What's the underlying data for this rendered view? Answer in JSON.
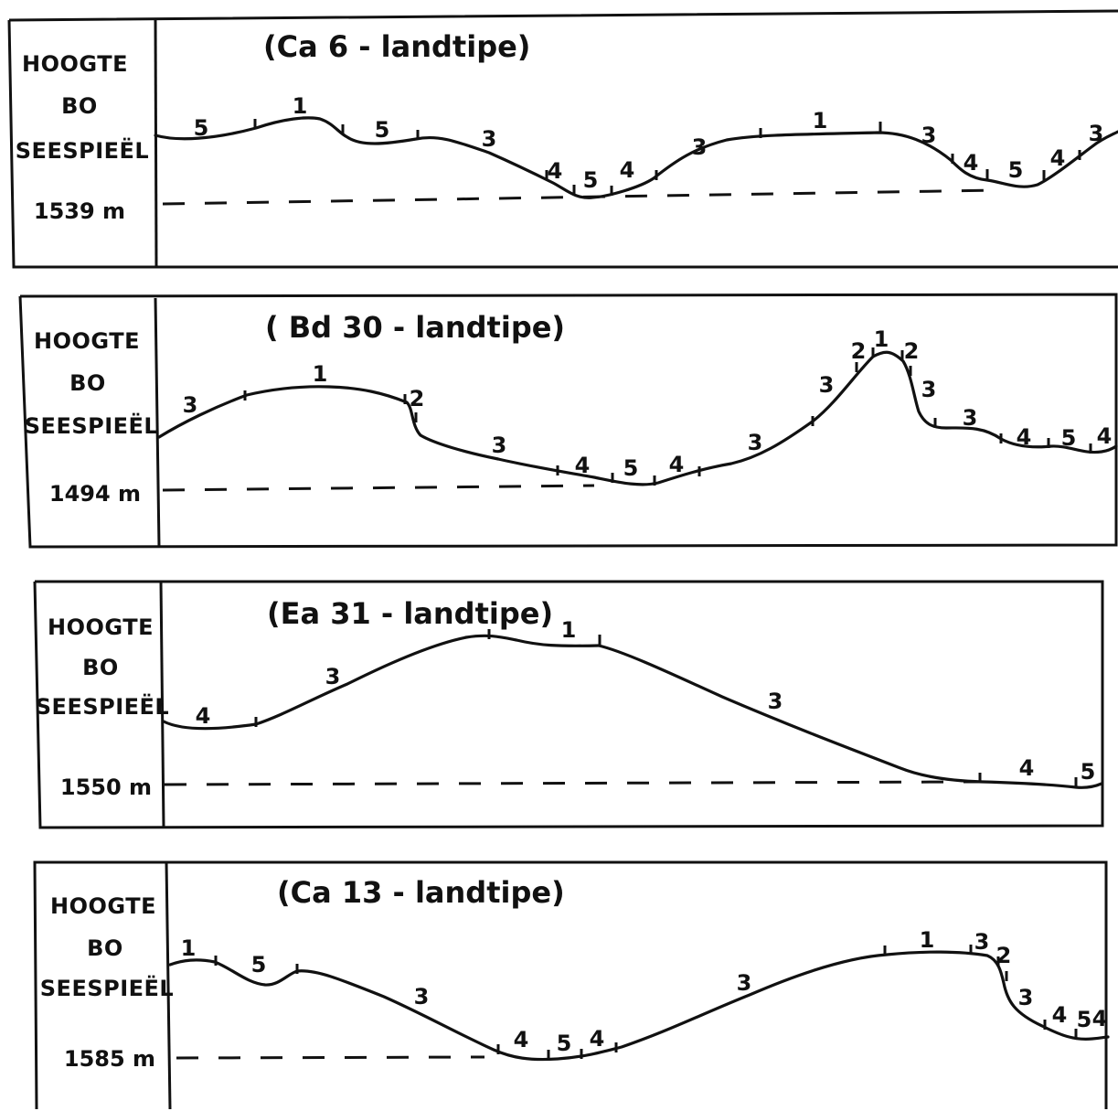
{
  "profiles": [
    {
      "title": "(Ca 6 -  landtipe)",
      "side_label": [
        "HOOGTE",
        "BO",
        "SEESPIEËL"
      ],
      "elevation": "1539 m",
      "units": [
        "5",
        "1",
        "5",
        "3",
        "4",
        "5",
        "4",
        "3",
        "1",
        "3",
        "4",
        "5",
        "4",
        "3"
      ]
    },
    {
      "title": "( Bd  30  -  landtipe)",
      "side_label": [
        "HOOGTE",
        "BO",
        "SEESPIEËL"
      ],
      "elevation": "1494 m",
      "units": [
        "3",
        "1",
        "2",
        "3",
        "4",
        "5",
        "4",
        "3",
        "3",
        "2",
        "1",
        "2",
        "3",
        "3",
        "4",
        "5",
        "4"
      ]
    },
    {
      "title": "(Ea  31  -  landtipe)",
      "side_label": [
        "HOOGTE",
        "BO",
        "SEESPIEËL"
      ],
      "elevation": "1550 m",
      "units": [
        "4",
        "3",
        "1",
        "3",
        "4",
        "5"
      ]
    },
    {
      "title": "(Ca  13  -  landtipe)",
      "side_label": [
        "HOOGTE",
        "BO",
        "SEESPIEËL"
      ],
      "elevation": "1585  m",
      "units": [
        "1",
        "5",
        "3",
        "4",
        "5",
        "4",
        "3",
        "1",
        "3",
        "2",
        "3",
        "4",
        "5",
        "4"
      ]
    }
  ]
}
